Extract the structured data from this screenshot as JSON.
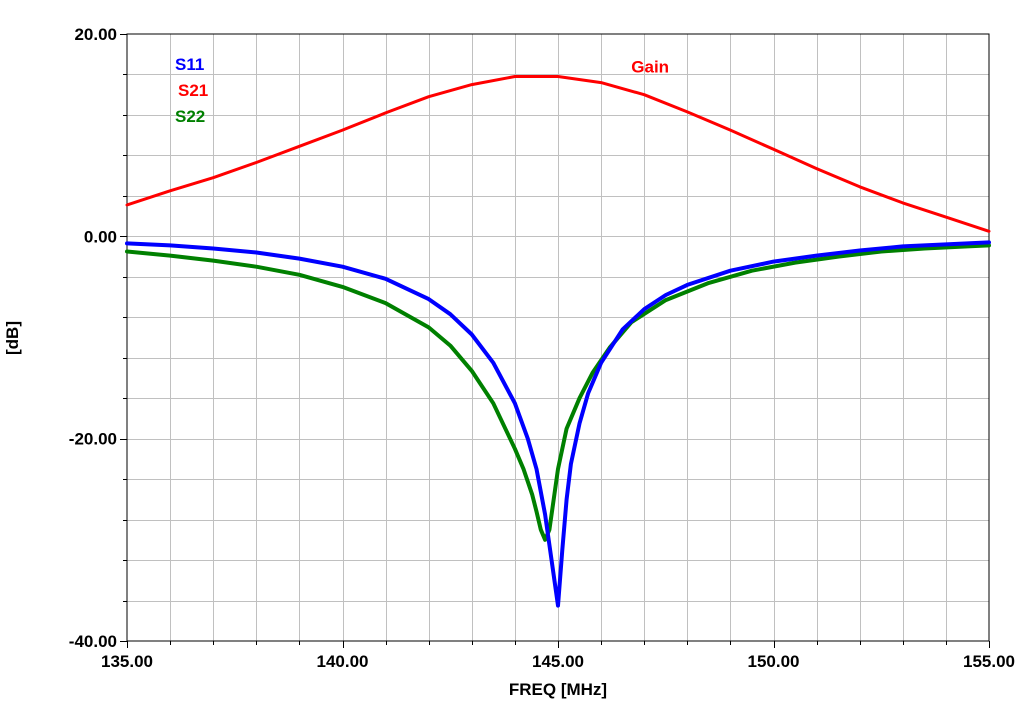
{
  "chart_data": {
    "type": "line",
    "xlabel": "FREQ [MHz]",
    "ylabel": "[dB]",
    "xlim": [
      135,
      155
    ],
    "ylim": [
      -40,
      20
    ],
    "x_ticks": [
      {
        "value": 135,
        "label": "135.00"
      },
      {
        "value": 140,
        "label": "140.00"
      },
      {
        "value": 145,
        "label": "145.00"
      },
      {
        "value": 150,
        "label": "150.00"
      },
      {
        "value": 155,
        "label": "155.00"
      }
    ],
    "y_ticks": [
      {
        "value": 20,
        "label": "20.00"
      },
      {
        "value": 0,
        "label": "0.00"
      },
      {
        "value": -20,
        "label": "-20.00"
      },
      {
        "value": -40,
        "label": "-40.00"
      }
    ],
    "grid": true,
    "legend_position": "top-left",
    "annotations": [
      {
        "text": "Gain",
        "x": 146.7,
        "y": 16.2,
        "color": "#ff0000"
      }
    ],
    "series": [
      {
        "name": "S11",
        "color": "#0000ff",
        "x": [
          135,
          136,
          137,
          138,
          139,
          140,
          141,
          142,
          142.5,
          143,
          143.5,
          144,
          144.3,
          144.5,
          144.7,
          144.8,
          144.9,
          145,
          145.1,
          145.2,
          145.3,
          145.5,
          145.7,
          146,
          146.5,
          147,
          147.5,
          148,
          149,
          150,
          151,
          152,
          153,
          154,
          155
        ],
        "values": [
          -0.7,
          -0.9,
          -1.2,
          -1.6,
          -2.2,
          -3.0,
          -4.2,
          -6.2,
          -7.7,
          -9.7,
          -12.5,
          -16.5,
          -20.0,
          -23.0,
          -27.5,
          -30.5,
          -33.5,
          -36.5,
          -31.0,
          -26.0,
          -22.5,
          -18.5,
          -15.5,
          -12.5,
          -9.2,
          -7.2,
          -5.8,
          -4.8,
          -3.4,
          -2.5,
          -1.9,
          -1.4,
          -1.0,
          -0.8,
          -0.6
        ]
      },
      {
        "name": "S21",
        "color": "#ff0000",
        "x": [
          135,
          136,
          137,
          138,
          139,
          140,
          141,
          142,
          143,
          144,
          145,
          146,
          147,
          148,
          149,
          150,
          151,
          152,
          153,
          154,
          155
        ],
        "values": [
          3.1,
          4.5,
          5.8,
          7.3,
          8.9,
          10.5,
          12.2,
          13.8,
          15.0,
          15.8,
          15.8,
          15.2,
          14.0,
          12.3,
          10.5,
          8.6,
          6.7,
          4.9,
          3.3,
          1.9,
          0.5
        ]
      },
      {
        "name": "S22",
        "color": "#008000",
        "x": [
          135,
          136,
          137,
          138,
          139,
          140,
          141,
          142,
          142.5,
          143,
          143.5,
          144,
          144.2,
          144.4,
          144.5,
          144.6,
          144.7,
          144.8,
          144.9,
          145,
          145.2,
          145.5,
          145.8,
          146.2,
          146.7,
          147.5,
          148.5,
          149.5,
          150.5,
          151.5,
          152.5,
          153.5,
          154.5,
          155
        ],
        "values": [
          -1.5,
          -1.9,
          -2.4,
          -3.0,
          -3.8,
          -5.0,
          -6.6,
          -9.0,
          -10.8,
          -13.3,
          -16.5,
          -21.0,
          -23.0,
          -25.5,
          -27.2,
          -29.0,
          -30.0,
          -29.0,
          -26.0,
          -23.0,
          -19.0,
          -16.0,
          -13.5,
          -11.0,
          -8.5,
          -6.3,
          -4.6,
          -3.4,
          -2.6,
          -2.0,
          -1.5,
          -1.2,
          -1.0,
          -0.9
        ]
      }
    ]
  }
}
